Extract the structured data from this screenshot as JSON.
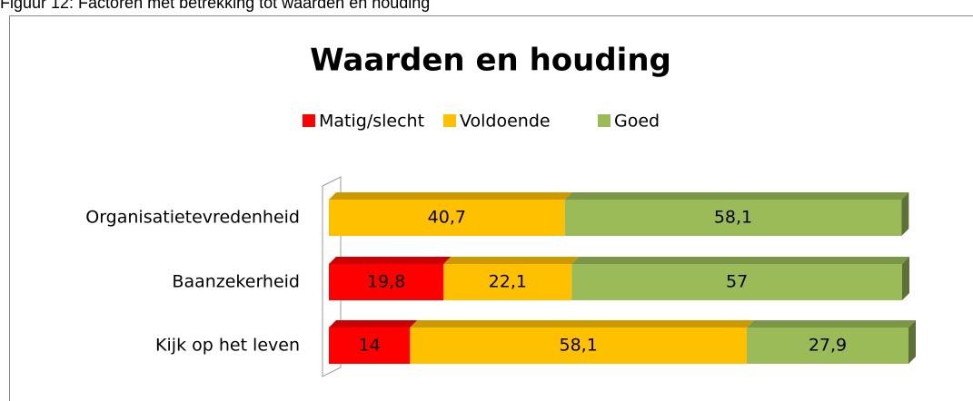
{
  "caption": "Figuur 12: Factoren met betrekking tot waarden en houding",
  "chart_data": {
    "type": "stacked-bar-horizontal",
    "title": "Waarden en houding",
    "categories": [
      "Organisatietevredenheid",
      "Baanzekerheid",
      "Kijk op het leven"
    ],
    "series": [
      {
        "name": "Matig/slecht",
        "color": "#ff0000",
        "values": [
          null,
          19.8,
          14
        ],
        "value_labels": [
          null,
          "19,8",
          "14"
        ]
      },
      {
        "name": "Voldoende",
        "color": "#ffc000",
        "values": [
          40.7,
          22.1,
          58.1
        ],
        "value_labels": [
          "40,7",
          "22,1",
          "58,1"
        ]
      },
      {
        "name": "Goed",
        "color": "#9bbb59",
        "values": [
          58.1,
          57,
          27.9
        ],
        "value_labels": [
          "58,1",
          "57",
          "27,9"
        ]
      }
    ],
    "xlim": [
      0,
      100
    ],
    "legend": "top"
  }
}
